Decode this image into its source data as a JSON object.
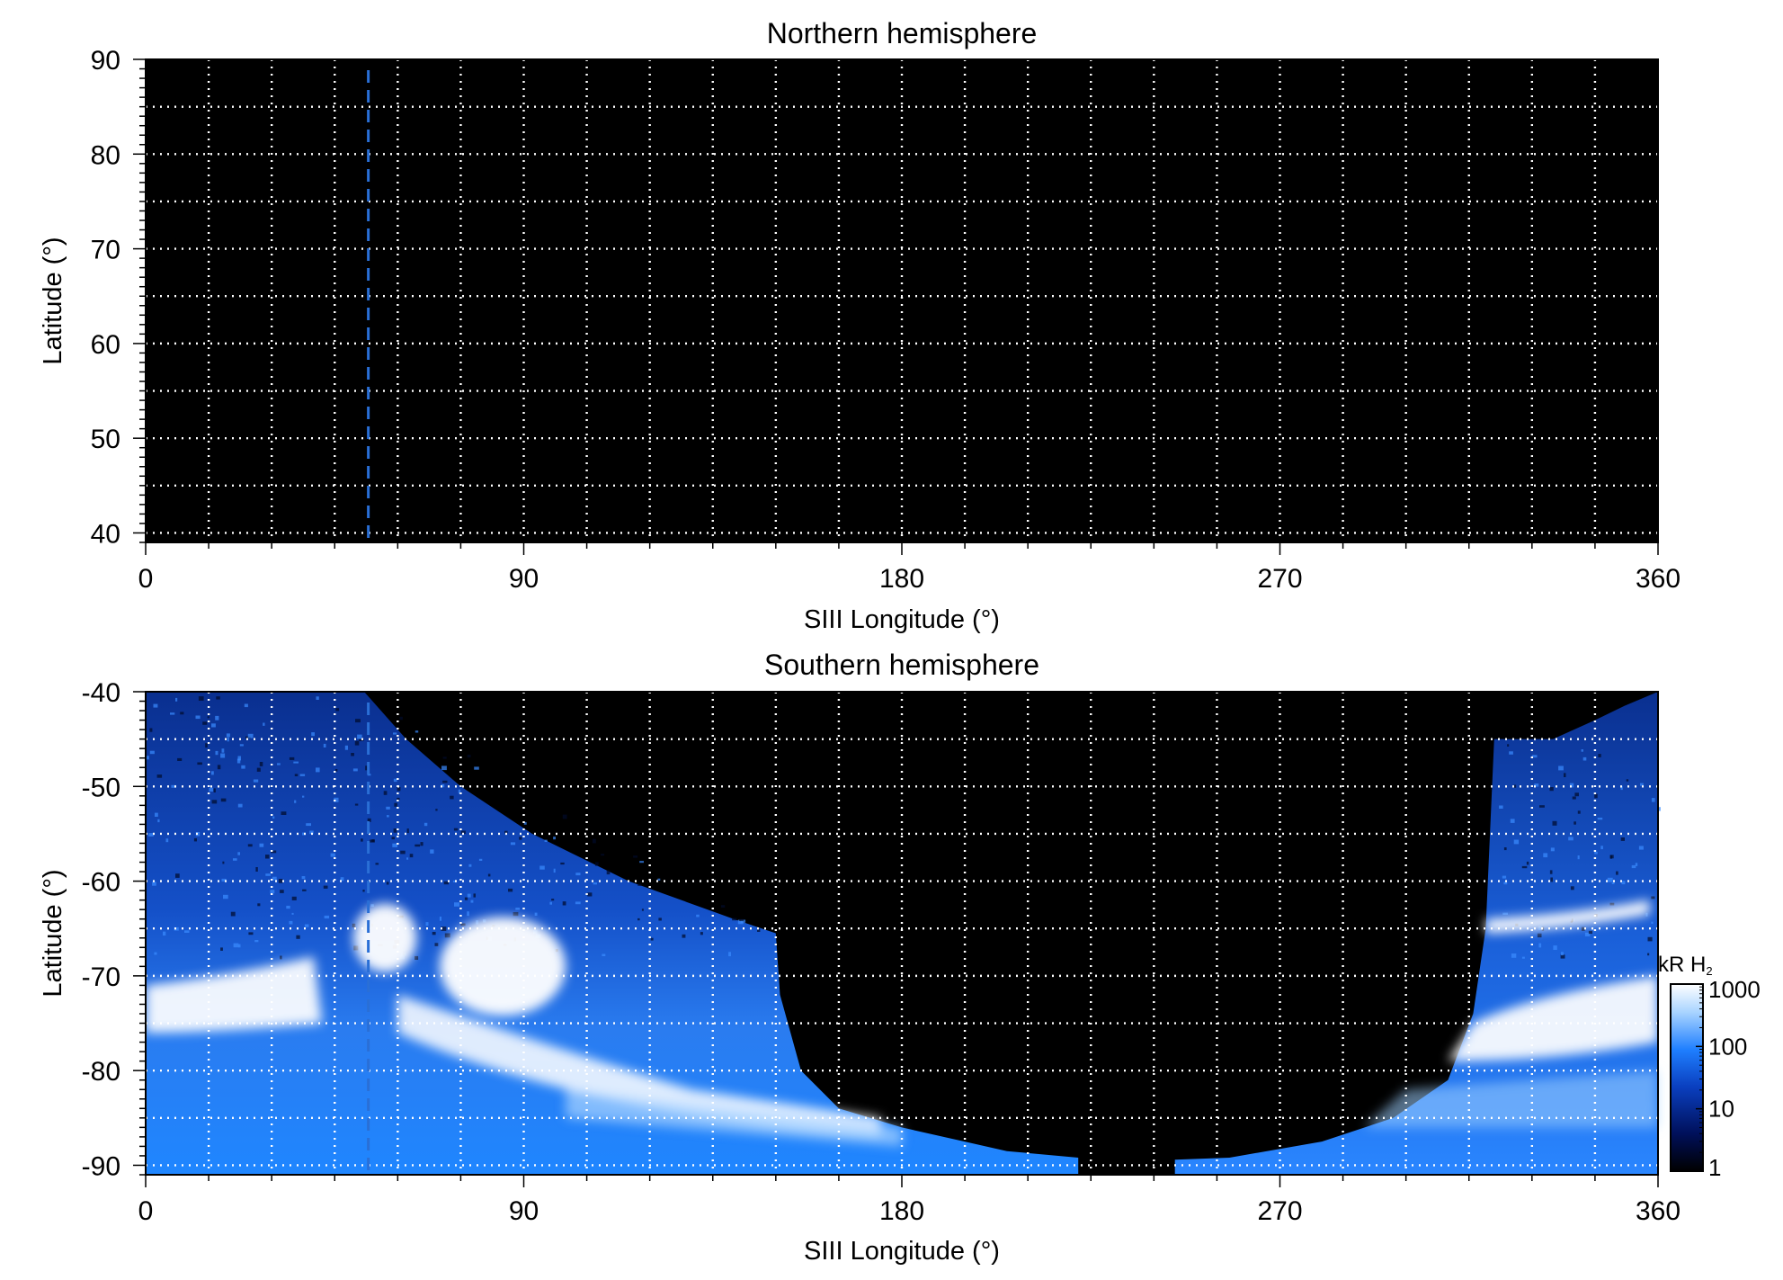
{
  "chart_data": [
    {
      "type": "heatmap",
      "title": "Northern hemisphere",
      "xlabel": "SIII Longitude (°)",
      "ylabel": "Latitude (°)",
      "xlim": [
        0,
        360
      ],
      "ylim": [
        39,
        90
      ],
      "xticks": [
        0,
        90,
        180,
        270,
        360
      ],
      "yticks": [
        40,
        50,
        60,
        70,
        80,
        90
      ],
      "grid": true,
      "grid_x_step": 15,
      "grid_y_step": 5,
      "marker_longitude": 53,
      "emission": "none"
    },
    {
      "type": "heatmap",
      "title": "Southern hemisphere",
      "xlabel": "SIII Longitude (°)",
      "ylabel": "Latitude (°)",
      "xlim": [
        0,
        360
      ],
      "ylim": [
        -91,
        -40
      ],
      "xticks": [
        0,
        90,
        180,
        270,
        360
      ],
      "yticks": [
        -40,
        -50,
        -60,
        -70,
        -80,
        -90
      ],
      "grid": true,
      "grid_x_step": 15,
      "grid_y_step": 5,
      "marker_longitude": 53,
      "emission": "auroral oval and background"
    }
  ],
  "colorbar": {
    "label_main": "kR H",
    "label_sub": "2",
    "scale": "log",
    "ticks": [
      "1",
      "10",
      "100",
      "1000"
    ],
    "tick_values": [
      1,
      10,
      100,
      1000
    ],
    "colors": [
      "#000000",
      "#00105a",
      "#0a3fbf",
      "#1f7fff",
      "#a9d4ff",
      "#ffffff"
    ]
  },
  "colors": {
    "background": "#000000",
    "grid": "#ffffff",
    "marker": "#2a6fd6",
    "emission_low": "#0d3da8",
    "emission_mid": "#1f86ff",
    "emission_high": "#ffffff"
  }
}
